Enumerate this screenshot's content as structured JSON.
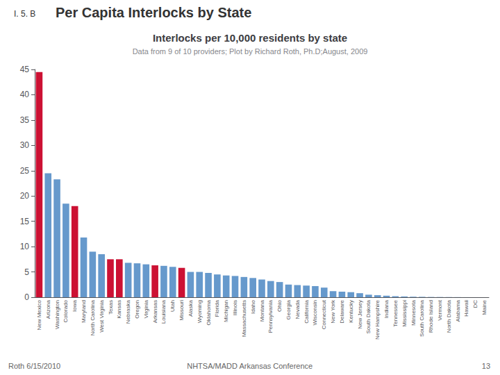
{
  "chart_data": {
    "type": "bar",
    "title": "Interlocks per 10,000 residents by state",
    "subtitle": "Data from 9 of 10 providers; Plot by Richard Roth, Ph.D;August, 2009",
    "annotations": [
      "I. 5. B",
      "Per Capita Interlocks by State",
      "Roth 6/15/2010",
      "NHTSA/MADD Arkansas Conference",
      "13"
    ],
    "categories": [
      "New Mexico",
      "Arizona",
      "Washington",
      "Colorado",
      "Iowa",
      "Maryland",
      "North Carolina",
      "West Virginia",
      "Texas",
      "Kansas",
      "Nebraska",
      "Oregon",
      "Virginia",
      "Arkansas",
      "Louisiana",
      "Utah",
      "Missouri",
      "Alaska",
      "Wyoming",
      "Oklahoma",
      "Florida",
      "Michigan",
      "Illinois",
      "Massachusetts",
      "Idaho",
      "Montana",
      "Pennsylvania",
      "Ohio",
      "Georgia",
      "Nevada",
      "California",
      "Wisconsin",
      "Connecticut",
      "New York",
      "Delaware",
      "Kentucky",
      "New Jersey",
      "South Dakota",
      "New Hampshire",
      "Indiana",
      "Tennessee",
      "Mississippi",
      "Minnesota",
      "South Carolina",
      "Rhode Island",
      "Vermont",
      "North Dakota",
      "Alabama",
      "Hawaii",
      "DC",
      "Maine"
    ],
    "values": [
      44.5,
      24.5,
      23.3,
      18.5,
      18.0,
      11.8,
      9.0,
      8.5,
      7.5,
      7.5,
      6.8,
      6.7,
      6.5,
      6.3,
      6.2,
      6.0,
      5.8,
      5.0,
      5.0,
      4.8,
      4.5,
      4.3,
      4.2,
      4.0,
      3.8,
      3.5,
      3.2,
      3.0,
      2.5,
      2.4,
      2.3,
      2.2,
      1.9,
      1.2,
      1.1,
      1.0,
      0.8,
      0.5,
      0.4,
      0.3,
      0.2,
      0.15,
      0.1,
      0.08,
      0.05,
      0.04,
      0.03,
      0.02,
      0.01,
      0.005,
      0.003
    ],
    "colors": [
      "#CC1133",
      "#6699CC",
      "#6699CC",
      "#6699CC",
      "#CC1133",
      "#6699CC",
      "#6699CC",
      "#6699CC",
      "#CC1133",
      "#CC1133",
      "#6699CC",
      "#6699CC",
      "#6699CC",
      "#CC1133",
      "#6699CC",
      "#6699CC",
      "#CC1133",
      "#6699CC",
      "#6699CC",
      "#6699CC",
      "#6699CC",
      "#6699CC",
      "#6699CC",
      "#6699CC",
      "#6699CC",
      "#6699CC",
      "#6699CC",
      "#6699CC",
      "#6699CC",
      "#6699CC",
      "#6699CC",
      "#6699CC",
      "#6699CC",
      "#6699CC",
      "#6699CC",
      "#6699CC",
      "#6699CC",
      "#6699CC",
      "#6699CC",
      "#6699CC",
      "#6699CC",
      "#6699CC",
      "#6699CC",
      "#6699CC",
      "#6699CC",
      "#6699CC",
      "#6699CC",
      "#6699CC",
      "#6699CC",
      "#6699CC",
      "#6699CC"
    ],
    "ylim": [
      0,
      45
    ],
    "yticks": [
      0,
      5,
      10,
      15,
      20,
      25,
      30,
      35,
      40,
      45
    ],
    "grid": false
  }
}
